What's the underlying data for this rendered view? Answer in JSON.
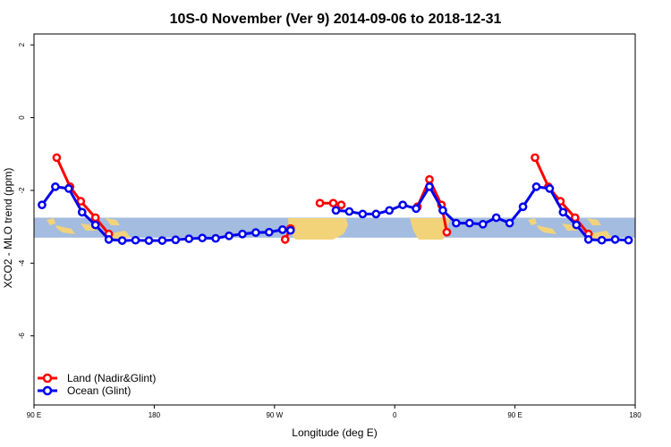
{
  "chart_data": {
    "type": "line",
    "title": "10S-0 November (Ver 9)   2014-09-06 to 2018-12-31",
    "xlabel": "Longitude (deg E)",
    "ylabel": "XCO2 - MLO trend (ppm)",
    "xlim": [
      90,
      540
    ],
    "ylim": [
      -7.9,
      2.3
    ],
    "x_ticks": [
      {
        "value": 90,
        "label": "90 E"
      },
      {
        "value": 180,
        "label": "180"
      },
      {
        "value": 270,
        "label": "90 W"
      },
      {
        "value": 360,
        "label": "0"
      },
      {
        "value": 450,
        "label": "90 E"
      },
      {
        "value": 540,
        "label": "180"
      }
    ],
    "y_ticks": [
      {
        "value": 2,
        "label": "2"
      },
      {
        "value": 0,
        "label": "0"
      },
      {
        "value": -2,
        "label": "-2"
      },
      {
        "value": -4,
        "label": "-4"
      },
      {
        "value": -6,
        "label": "-6"
      }
    ],
    "band": {
      "y_from": -2.75,
      "y_to": -3.3,
      "color": "#a4bcdf",
      "land_color": "#f2d37a"
    },
    "legend_position": "bottom-left",
    "series": [
      {
        "name": "Land (Nadir&Glint)",
        "color": "#ff0000",
        "segments": [
          [
            [
              107,
              -1.1
            ],
            [
              117,
              -1.9
            ],
            [
              125,
              -2.3
            ],
            [
              136,
              -2.75
            ],
            [
              146,
              -3.2
            ]
          ],
          [
            [
              278,
              -3.35
            ],
            [
              282,
              -3.05
            ]
          ],
          [
            [
              304,
              -2.35
            ],
            [
              314,
              -2.35
            ],
            [
              320,
              -2.4
            ]
          ],
          [
            [
              377,
              -2.45
            ],
            [
              386,
              -1.7
            ],
            [
              395,
              -2.4
            ],
            [
              399,
              -3.15
            ]
          ],
          [
            [
              465,
              -1.1
            ],
            [
              475,
              -1.9
            ],
            [
              484,
              -2.3
            ],
            [
              495,
              -2.75
            ],
            [
              505,
              -3.2
            ]
          ]
        ]
      },
      {
        "name": "Ocean (Glint)",
        "color": "#0000ee",
        "segments": [
          [
            [
              96,
              -2.4
            ],
            [
              106,
              -1.9
            ],
            [
              116,
              -1.95
            ],
            [
              126,
              -2.6
            ],
            [
              136,
              -2.95
            ],
            [
              146,
              -3.35
            ],
            [
              156,
              -3.38
            ],
            [
              166,
              -3.37
            ],
            [
              176,
              -3.38
            ],
            [
              186,
              -3.38
            ],
            [
              196,
              -3.36
            ],
            [
              206,
              -3.33
            ],
            [
              216,
              -3.31
            ],
            [
              226,
              -3.32
            ],
            [
              236,
              -3.25
            ],
            [
              246,
              -3.2
            ],
            [
              256,
              -3.16
            ],
            [
              266,
              -3.15
            ],
            [
              276,
              -3.08
            ],
            [
              282,
              -3.1
            ]
          ],
          [
            [
              316,
              -2.55
            ],
            [
              326,
              -2.58
            ],
            [
              336,
              -2.65
            ],
            [
              346,
              -2.65
            ],
            [
              356,
              -2.55
            ],
            [
              366,
              -2.4
            ],
            [
              376,
              -2.5
            ],
            [
              386,
              -1.9
            ],
            [
              396,
              -2.55
            ],
            [
              406,
              -2.9
            ],
            [
              416,
              -2.9
            ],
            [
              426,
              -2.93
            ],
            [
              436,
              -2.75
            ],
            [
              446,
              -2.9
            ],
            [
              456,
              -2.45
            ],
            [
              466,
              -1.9
            ],
            [
              476,
              -1.95
            ],
            [
              486,
              -2.6
            ],
            [
              496,
              -2.95
            ],
            [
              505,
              -3.35
            ],
            [
              515,
              -3.37
            ],
            [
              525,
              -3.35
            ],
            [
              535,
              -3.37
            ]
          ]
        ]
      }
    ]
  }
}
